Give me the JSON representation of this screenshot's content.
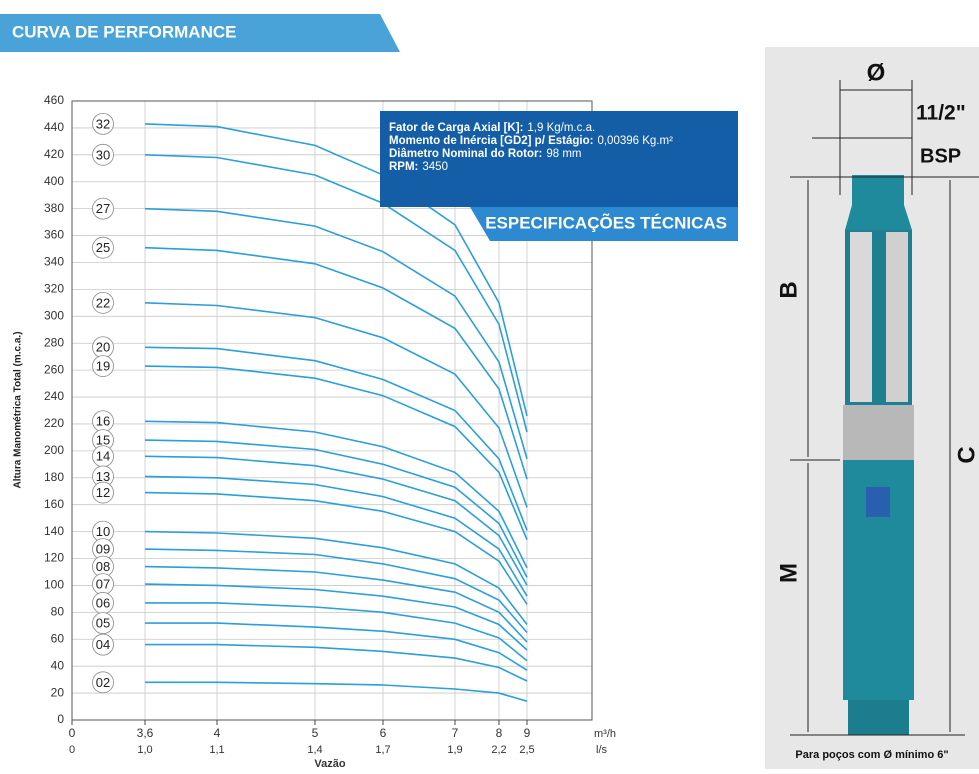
{
  "header": {
    "title": "CURVA DE PERFORMANCE"
  },
  "specs": {
    "title": "ESPECIFICAÇÕES TÉCNICAS",
    "lines": [
      {
        "label": "Fator de Carga Axial [K]:",
        "value": "1,9 Kg/m.c.a."
      },
      {
        "label": "Momento de Inércia [GD2] p/ Estágio:",
        "value": "0,00396 Kg.m²"
      },
      {
        "label": "Diâmetro Nominal do Rotor:",
        "value": "98 mm"
      },
      {
        "label": "RPM:",
        "value": "3450"
      }
    ]
  },
  "diagram": {
    "diameter": "Ø",
    "thread": "11/2\"",
    "thread_type": "BSP",
    "dim_b": "B",
    "dim_c": "C",
    "dim_m": "M",
    "note": "Para poços com Ø mínimo 6\""
  },
  "chart_data": {
    "type": "line",
    "y_label": "Altura Manométrica Total (m.c.a.)",
    "x_label": "Vazão",
    "x_unit": "m³/h",
    "x2_unit": "l/s",
    "x": [
      3.6,
      4,
      5,
      6,
      7,
      8,
      9
    ],
    "xlim": [
      0,
      10
    ],
    "xticks": [
      0,
      {
        "value": 3.6,
        "label": "3,6"
      },
      4,
      5,
      6,
      7,
      8,
      9
    ],
    "x2ticks": [
      0,
      {
        "value": 1.0,
        "label": "1,0"
      },
      {
        "value": 1.1,
        "label": "1,1"
      },
      {
        "value": 1.4,
        "label": "1,4"
      },
      {
        "value": 1.7,
        "label": "1,7"
      },
      {
        "value": 1.9,
        "label": "1,9"
      },
      {
        "value": 2.2,
        "label": "2,2"
      },
      {
        "value": 2.5,
        "label": "2,5"
      }
    ],
    "ylim": [
      0,
      460
    ],
    "yticks": [
      0,
      20,
      40,
      60,
      80,
      100,
      120,
      140,
      160,
      180,
      200,
      220,
      240,
      260,
      280,
      300,
      320,
      340,
      360,
      380,
      400,
      420,
      440,
      460
    ],
    "grid": true,
    "color": "#2b9fd9",
    "series": [
      {
        "name": "32",
        "values": [
          443,
          441,
          427,
          405,
          368,
          310,
          226
        ]
      },
      {
        "name": "30",
        "values": [
          420,
          418,
          405,
          384,
          349,
          294,
          214
        ]
      },
      {
        "name": "27",
        "values": [
          380,
          378,
          367,
          348,
          315,
          266,
          194
        ]
      },
      {
        "name": "25",
        "values": [
          351,
          349,
          339,
          321,
          291,
          246,
          179
        ]
      },
      {
        "name": "22",
        "values": [
          310,
          308,
          299,
          284,
          257,
          217,
          158
        ]
      },
      {
        "name": "20",
        "values": [
          277,
          276,
          267,
          253,
          230,
          194,
          141
        ]
      },
      {
        "name": "19",
        "values": [
          263,
          262,
          254,
          241,
          218,
          184,
          134
        ]
      },
      {
        "name": "16",
        "values": [
          222,
          221,
          214,
          203,
          184,
          155,
          113
        ]
      },
      {
        "name": "15",
        "values": [
          208,
          207,
          201,
          190,
          173,
          146,
          106
        ]
      },
      {
        "name": "14",
        "values": [
          196,
          195,
          189,
          179,
          163,
          137,
          100
        ]
      },
      {
        "name": "13",
        "values": [
          181,
          180,
          175,
          166,
          150,
          127,
          92
        ]
      },
      {
        "name": "12",
        "values": [
          169,
          168,
          163,
          155,
          140,
          118,
          86
        ]
      },
      {
        "name": "10",
        "values": [
          140,
          139,
          135,
          128,
          116,
          98,
          71
        ]
      },
      {
        "name": "09",
        "values": [
          127,
          126,
          123,
          116,
          105,
          89,
          65
        ]
      },
      {
        "name": "08",
        "values": [
          114,
          113,
          110,
          104,
          95,
          80,
          58
        ]
      },
      {
        "name": "07",
        "values": [
          101,
          100,
          97,
          92,
          84,
          71,
          52
        ]
      },
      {
        "name": "06",
        "values": [
          87,
          87,
          84,
          80,
          72,
          61,
          44
        ]
      },
      {
        "name": "05",
        "values": [
          72,
          72,
          69,
          66,
          60,
          50,
          37
        ]
      },
      {
        "name": "04",
        "values": [
          56,
          56,
          54,
          51,
          46,
          39,
          29
        ]
      },
      {
        "name": "02",
        "values": [
          28,
          28,
          27,
          26,
          23,
          20,
          14
        ]
      }
    ]
  }
}
